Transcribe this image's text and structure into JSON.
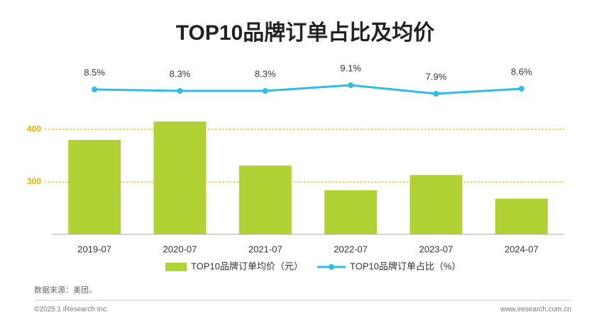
{
  "chart_data": {
    "type": "combo",
    "title": "TOP10品牌订单占比及均价",
    "categories": [
      "2019-07",
      "2020-07",
      "2021-07",
      "2022-07",
      "2023-07",
      "2024-07"
    ],
    "series": [
      {
        "name": "TOP10品牌订单均价（元）",
        "type": "bar",
        "color": "#b1d235",
        "values": [
          380,
          415,
          331,
          284,
          313,
          268
        ]
      },
      {
        "name": "TOP10品牌订单占比（%）",
        "type": "line",
        "axis": "y2",
        "color": "#2dbde6",
        "values": [
          8.5,
          8.3,
          8.3,
          9.1,
          7.9,
          8.6
        ],
        "value_labels": [
          "8.5%",
          "8.3%",
          "8.3%",
          "9.1%",
          "7.9%",
          "8.6%"
        ]
      }
    ],
    "ylim": [
      200,
      430
    ],
    "yticks": [
      300,
      400
    ],
    "y2lim": [
      4,
      12
    ],
    "grid": true,
    "grid_color": "#d8b400",
    "source": "数据来源：美团。",
    "copyright": "©2025.1 iResearch Inc.",
    "website": "www.iresearch.com.cn"
  }
}
